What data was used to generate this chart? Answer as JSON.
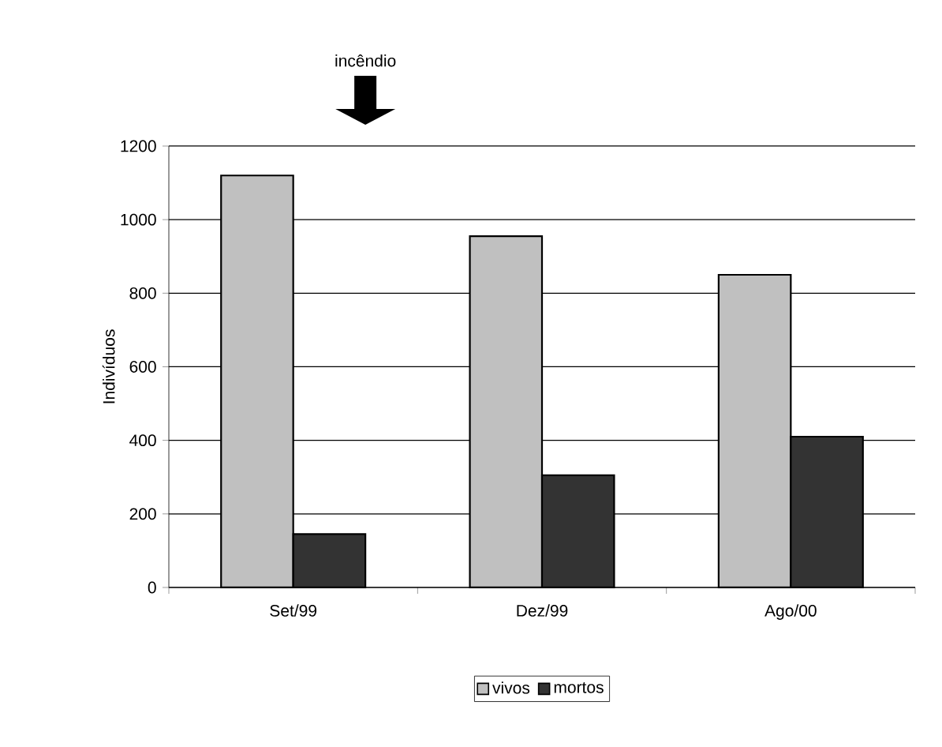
{
  "chart_data": {
    "type": "bar",
    "ylabel": "Indivíduos",
    "categories": [
      "Set/99",
      "Dez/99",
      "Ago/00"
    ],
    "series": [
      {
        "name": "vivos",
        "color": "#c0c0c0",
        "values": [
          1120,
          955,
          850
        ]
      },
      {
        "name": "mortos",
        "color": "#333333",
        "values": [
          145,
          305,
          410
        ]
      }
    ],
    "ylim": [
      0,
      1200
    ],
    "yticks": [
      0,
      200,
      400,
      600,
      800,
      1000,
      1200
    ],
    "grid": "y",
    "legend": "bottom",
    "annotations": [
      "incêndio"
    ]
  }
}
